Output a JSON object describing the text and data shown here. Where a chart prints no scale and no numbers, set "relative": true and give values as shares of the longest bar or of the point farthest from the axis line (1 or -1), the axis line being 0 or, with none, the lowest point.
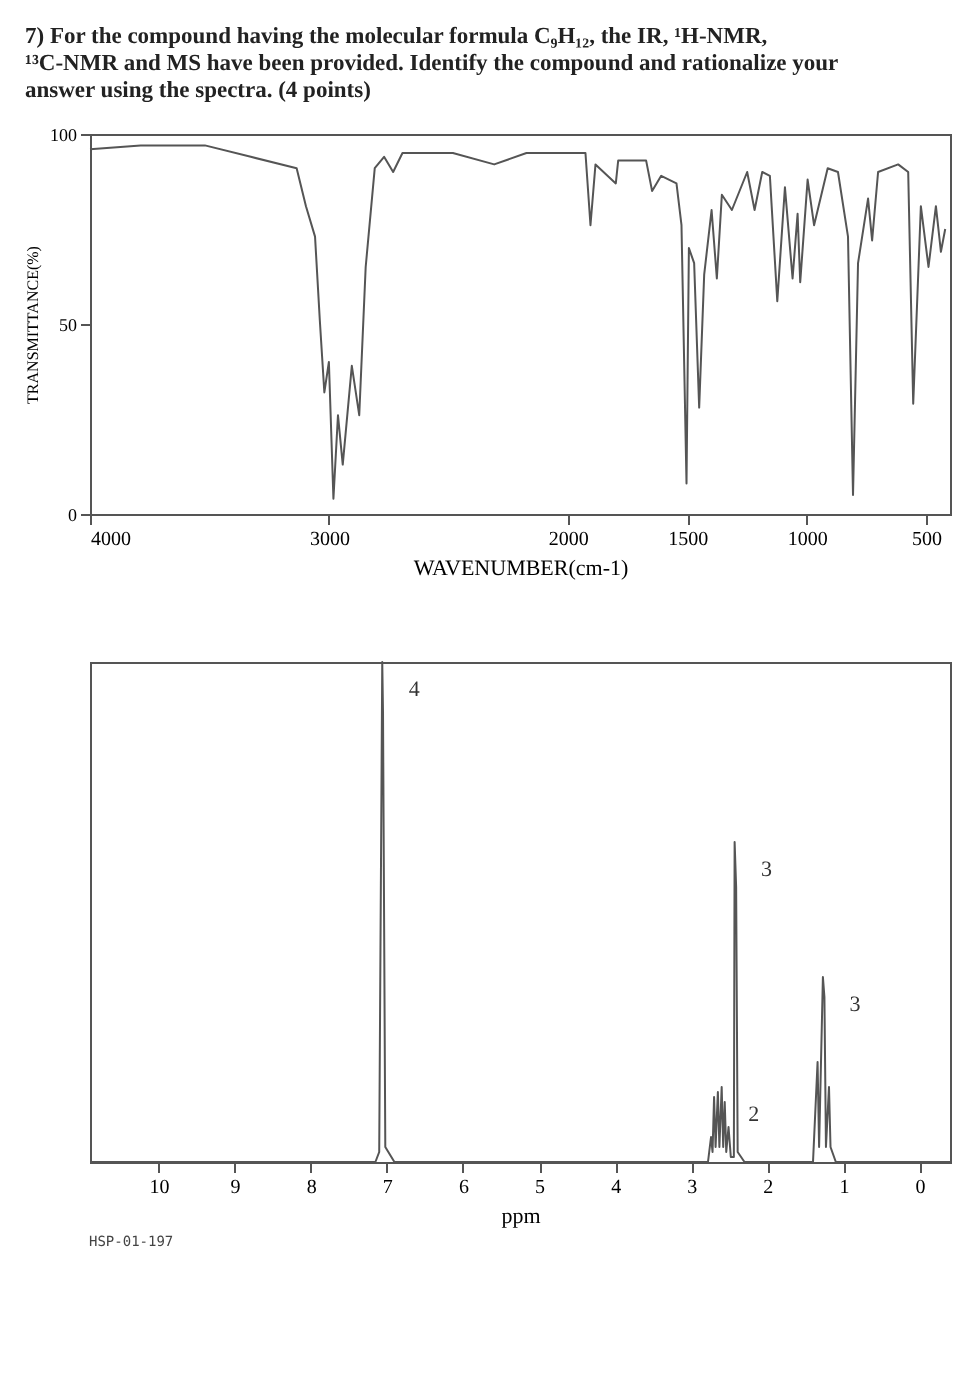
{
  "chart_data": [
    {
      "type": "line",
      "title": "7) For the compound having the molecular formula C₉H₁₂, the IR, ¹H-NMR, ¹³C-NMR and MS have been provided. Identify the compound and rationalize your answer using the spectra. (4 points)",
      "xlabel": "WAVENUMBER(cm-1)",
      "ylabel": "TRANSMITTANCE(%)",
      "xlim": [
        4000,
        400
      ],
      "xticks": [
        4000,
        3000,
        2000,
        1500,
        1000,
        500
      ],
      "ylim": [
        0,
        100
      ],
      "yticks": [
        0,
        50,
        100
      ],
      "grid": false,
      "series": [
        {
          "color": "#555555",
          "x": [
            4000,
            3788,
            3519,
            3327,
            3135,
            3096,
            3058,
            3038,
            3019,
            3000,
            2981,
            2962,
            2942,
            2904,
            2873,
            2846,
            2808,
            2769,
            2731,
            2692,
            2481,
            2308,
            2173,
            1926,
            1905,
            1884,
            1799,
            1789,
            1672,
            1647,
            1609,
            1545,
            1524,
            1503,
            1493,
            1471,
            1450,
            1429,
            1398,
            1376,
            1355,
            1313,
            1249,
            1218,
            1186,
            1154,
            1123,
            1091,
            1059,
            1038,
            1027,
            996,
            969,
            912,
            869,
            827,
            806,
            785,
            743,
            726,
            701,
            617,
            575,
            554,
            522,
            490,
            459,
            438,
            420
          ],
          "values": [
            96,
            97,
            97,
            94,
            91,
            81,
            73,
            51,
            32,
            40,
            4,
            26,
            13,
            39,
            26,
            65,
            91,
            94,
            90,
            95,
            95,
            92,
            95,
            95,
            76,
            92,
            87,
            93,
            93,
            85,
            89,
            87,
            76,
            8,
            70,
            66,
            28,
            63,
            80,
            62,
            84,
            80,
            90,
            80,
            90,
            89,
            56,
            86,
            62,
            79,
            61,
            88,
            76,
            91,
            90,
            73,
            5,
            66,
            83,
            72,
            90,
            92,
            90,
            29,
            81,
            65,
            81,
            69,
            75
          ]
        }
      ]
    },
    {
      "type": "line",
      "xlabel": "ppm",
      "xlim": [
        10.9,
        -0.4
      ],
      "xticks": [
        10,
        9,
        8,
        7,
        6,
        5,
        4,
        3,
        2,
        1,
        0
      ],
      "relative": true,
      "grid": false,
      "annotations": [
        {
          "text": "4",
          "x": 7.06,
          "y": 1
        },
        {
          "text": "3",
          "x": 2.43,
          "y": 0.64
        },
        {
          "text": "3",
          "x": 1.27,
          "y": 0.37
        },
        {
          "text": "2",
          "x": 2.6,
          "y": 0.15
        },
        "HSP-01-197"
      ],
      "series": [
        {
          "color": "#555555",
          "x": [
            10.9,
            7.15,
            7.1,
            7.06,
            7.05,
            7.02,
            6.9,
            2.78,
            2.74,
            2.72,
            2.7,
            2.68,
            2.65,
            2.63,
            2.6,
            2.58,
            2.56,
            2.54,
            2.51,
            2.48,
            2.44,
            2.43,
            2.41,
            2.39,
            2.3,
            1.4,
            1.34,
            1.32,
            1.27,
            1.25,
            1.23,
            1.19,
            1.17,
            1.1,
            -0.4
          ],
          "values": [
            0,
            0,
            0.02,
            1,
            0.9,
            0.03,
            0,
            0,
            0.05,
            0.02,
            0.13,
            0.03,
            0.14,
            0.03,
            0.15,
            0.03,
            0.12,
            0.02,
            0.07,
            0.01,
            0.01,
            0.64,
            0.55,
            0.02,
            0,
            0,
            0.2,
            0.03,
            0.37,
            0.33,
            0.03,
            0.15,
            0.03,
            0,
            0
          ]
        }
      ]
    }
  ]
}
